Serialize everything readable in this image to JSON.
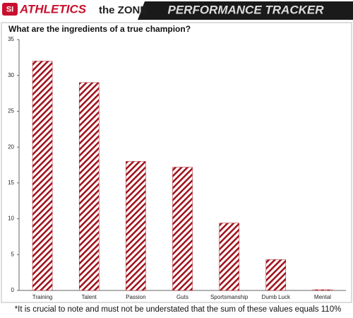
{
  "header": {
    "brand": "ATHLETICS",
    "section": "the ZONE",
    "banner": "PERFORMANCE TRACKER"
  },
  "chart_data": {
    "type": "bar",
    "title": "What are the ingredients of a true champion?",
    "categories": [
      "Training",
      "Talent",
      "Passion",
      "Guts",
      "Sportsmanship",
      "Dumb Luck",
      "Mental"
    ],
    "values": [
      32,
      29,
      18,
      17.2,
      9.4,
      4.3,
      0.1
    ],
    "color": "#a0141e",
    "ylim": [
      0,
      35
    ],
    "yticks": [
      0,
      5,
      10,
      15,
      20,
      25,
      30,
      35
    ],
    "grid": false,
    "note": "*It is crucial to note and must not be understated that the sum of these values equals 110%"
  }
}
